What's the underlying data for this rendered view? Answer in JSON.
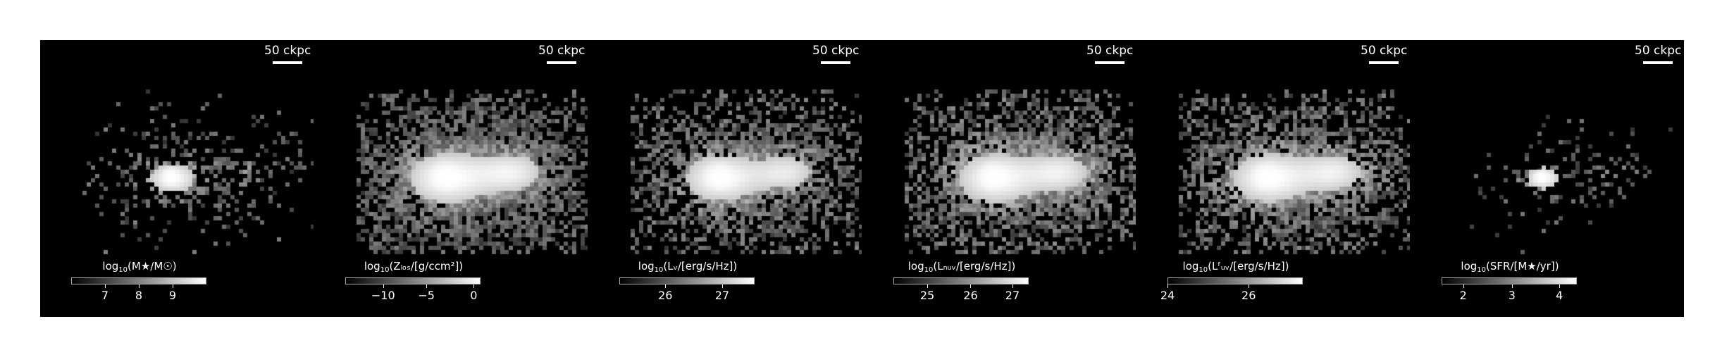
{
  "figure": {
    "scale_bar_label": "50 ckpc",
    "panels": [
      {
        "id": "stellar-mass",
        "colorbar": {
          "prefix": "log",
          "sub": "10",
          "label": "(M★/M☉)",
          "ticks": [
            "7",
            "8",
            "9"
          ],
          "tick_fracs": [
            0.25,
            0.5,
            0.75
          ]
        }
      },
      {
        "id": "metallicity",
        "colorbar": {
          "prefix": "log",
          "sub": "10",
          "label": "(Zₗₒₛ/[g/ccm²])",
          "ticks": [
            "−10",
            "−5",
            "0"
          ],
          "tick_fracs": [
            0.28,
            0.6,
            0.95
          ]
        }
      },
      {
        "id": "v-band",
        "colorbar": {
          "prefix": "log",
          "sub": "10",
          "label": "(Lᵥ/[erg/s/Hz])",
          "ticks": [
            "26",
            "27"
          ],
          "tick_fracs": [
            0.34,
            0.76
          ]
        }
      },
      {
        "id": "nuv",
        "colorbar": {
          "prefix": "log",
          "sub": "10",
          "label": "(Lₙᵤᵥ/[erg/s/Hz])",
          "ticks": [
            "25",
            "26",
            "27"
          ],
          "tick_fracs": [
            0.25,
            0.57,
            0.88
          ]
        }
      },
      {
        "id": "fuv",
        "colorbar": {
          "prefix": "log",
          "sub": "10",
          "label": "(Lᶠᵤᵥ/[erg/s/Hz])",
          "ticks": [
            "24",
            "26"
          ],
          "tick_fracs": [
            0.0,
            0.6
          ]
        }
      },
      {
        "id": "sfr",
        "colorbar": {
          "prefix": "log",
          "sub": "10",
          "label": "(SFR/[M★/yr])",
          "ticks": [
            "2",
            "3",
            "4"
          ],
          "tick_fracs": [
            0.16,
            0.52,
            0.87
          ]
        }
      }
    ]
  }
}
